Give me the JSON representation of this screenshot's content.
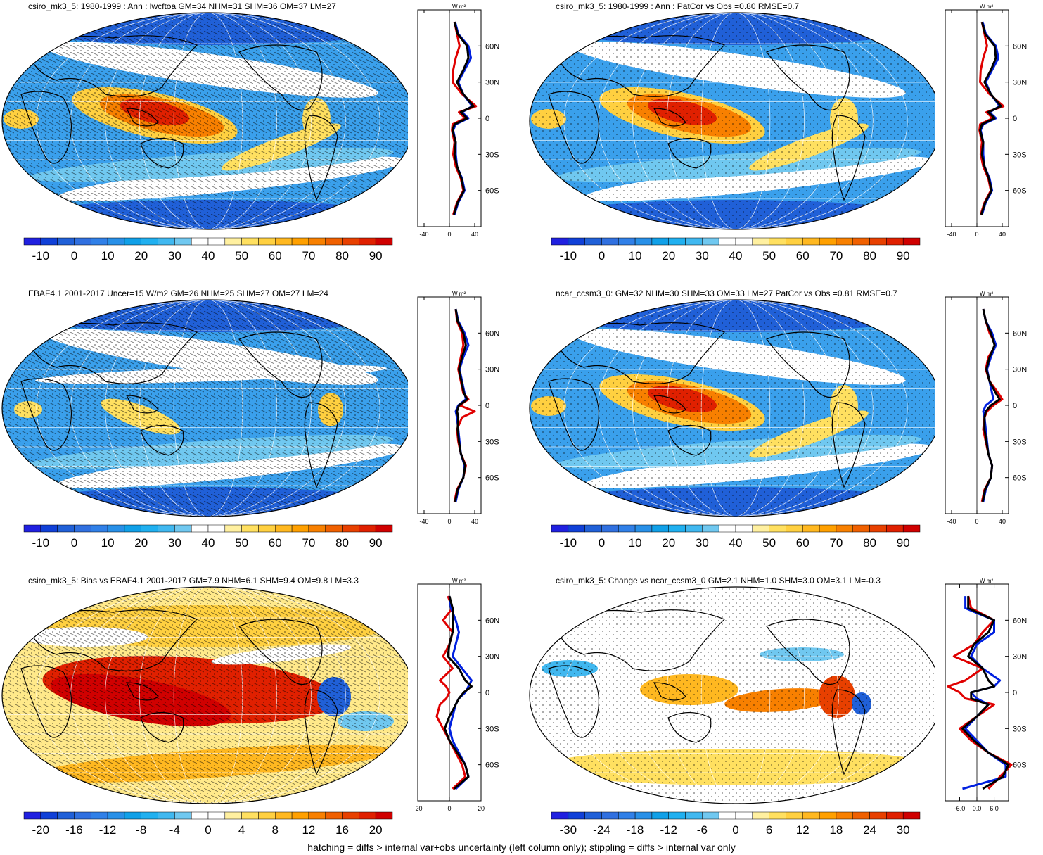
{
  "footer": "hatching = diffs > internal var+obs uncertainty (left column only); stippling = diffs > internal var only",
  "colors": {
    "model_line": "#e00000",
    "obs_line": "#0020e0",
    "ref_line": "#000000",
    "map_outline": "#000000"
  },
  "scales": {
    "absolute": [
      "-10",
      "0",
      "10",
      "20",
      "30",
      "40",
      "50",
      "60",
      "70",
      "80",
      "90"
    ],
    "bias": [
      "-20",
      "-16",
      "-12",
      "-8",
      "-4",
      "0",
      "4",
      "8",
      "12",
      "16",
      "20"
    ],
    "change": [
      "-30",
      "-24",
      "-18",
      "-12",
      "-6",
      "0",
      "6",
      "12",
      "18",
      "24",
      "30"
    ]
  },
  "palettes": {
    "absolute": [
      "#2020e0",
      "#1040d8",
      "#2060d8",
      "#3070e0",
      "#3080e8",
      "#2890e8",
      "#10a0e8",
      "#20b0f0",
      "#40b8f0",
      "#70c8f0",
      "#ffffff",
      "#ffffff",
      "#fff0a0",
      "#ffe060",
      "#ffd040",
      "#ffb820",
      "#ffa000",
      "#f88000",
      "#f06000",
      "#e84000",
      "#e02000",
      "#d00000"
    ],
    "diverging": [
      "#2020e0",
      "#1040d8",
      "#2060d8",
      "#3070e0",
      "#3080e8",
      "#2890e8",
      "#10a0e8",
      "#20b0f0",
      "#40b8f0",
      "#70c8f0",
      "#ffffff",
      "#ffffff",
      "#fff0a0",
      "#ffe060",
      "#ffd040",
      "#ffb820",
      "#ffa000",
      "#f88000",
      "#f06000",
      "#e84000",
      "#e02000",
      "#d00000"
    ]
  },
  "chart_data": [
    {
      "type": "map",
      "title": "csiro_mk3_5: 1980-1999 : Ann : lwcftoa GM=34 NHM=31 SHM=36 OM=37 LM=27",
      "scale": "absolute",
      "pattern": "hatch",
      "mapstyle": "abs",
      "profile": {
        "unit": "W m²",
        "xticks": [
          "-40",
          "0",
          "40"
        ],
        "xlim": [
          -50,
          50
        ],
        "lat_ticks": [
          "60N",
          "30N",
          "0",
          "30S",
          "60S"
        ],
        "lat": [
          80,
          70,
          60,
          50,
          40,
          30,
          20,
          10,
          5,
          0,
          -5,
          -10,
          -20,
          -30,
          -40,
          -50,
          -60,
          -70,
          -80
        ],
        "series": [
          {
            "role": "model",
            "values": [
              8,
              12,
              16,
              10,
              6,
              5,
              20,
              42,
              15,
              25,
              5,
              4,
              8,
              6,
              10,
              18,
              22,
              12,
              6
            ]
          },
          {
            "role": "obs",
            "values": [
              9,
              14,
              30,
              34,
              24,
              14,
              22,
              36,
              20,
              30,
              10,
              6,
              10,
              10,
              12,
              20,
              24,
              14,
              8
            ]
          },
          {
            "role": "ref",
            "values": [
              8,
              13,
              28,
              30,
              22,
              12,
              22,
              38,
              18,
              28,
              8,
              5,
              10,
              8,
              12,
              19,
              23,
              13,
              7
            ]
          }
        ]
      }
    },
    {
      "type": "map",
      "title": "csiro_mk3_5: 1980-1999 : Ann : PatCor vs Obs =0.80 RMSE=0.7",
      "scale": "absolute",
      "pattern": "stipple",
      "mapstyle": "abs",
      "profile": {
        "unit": "W m²",
        "xticks": [
          "-40",
          "0",
          "40"
        ],
        "xlim": [
          -50,
          50
        ],
        "lat_ticks": [
          "60N",
          "30N",
          "0",
          "30S",
          "60S"
        ],
        "lat": [
          80,
          70,
          60,
          50,
          40,
          30,
          20,
          10,
          5,
          0,
          -5,
          -10,
          -20,
          -30,
          -40,
          -50,
          -60,
          -70,
          -80
        ],
        "series": [
          {
            "role": "model",
            "values": [
              8,
              12,
              16,
              10,
              6,
              5,
              20,
              42,
              15,
              25,
              5,
              4,
              8,
              6,
              10,
              18,
              22,
              12,
              6
            ]
          },
          {
            "role": "obs",
            "values": [
              9,
              14,
              30,
              34,
              24,
              14,
              22,
              36,
              20,
              30,
              10,
              6,
              10,
              10,
              12,
              20,
              24,
              14,
              8
            ]
          },
          {
            "role": "ref",
            "values": [
              8,
              13,
              28,
              30,
              22,
              12,
              22,
              38,
              18,
              28,
              8,
              5,
              10,
              8,
              12,
              19,
              23,
              13,
              7
            ]
          }
        ]
      }
    },
    {
      "type": "map",
      "title": "EBAF4.1 2001-2017 Uncer=15 W/m2 GM=26 NHM=25 SHM=27 OM=27 LM=24",
      "scale": "absolute",
      "pattern": "hatch",
      "mapstyle": "obs",
      "profile": {
        "unit": "W m²",
        "xticks": [
          "-40",
          "0",
          "40"
        ],
        "xlim": [
          -50,
          50
        ],
        "lat_ticks": [
          "60N",
          "30N",
          "0",
          "30S",
          "60S"
        ],
        "lat": [
          80,
          70,
          60,
          50,
          40,
          30,
          20,
          10,
          5,
          0,
          -5,
          -10,
          -20,
          -30,
          -40,
          -50,
          -60,
          -70,
          -80
        ],
        "series": [
          {
            "role": "model",
            "values": [
              10,
              12,
              20,
              22,
              18,
              14,
              18,
              22,
              30,
              16,
              40,
              20,
              12,
              14,
              18,
              26,
              22,
              12,
              8
            ]
          },
          {
            "role": "obs",
            "values": [
              10,
              14,
              24,
              30,
              22,
              16,
              20,
              24,
              26,
              14,
              10,
              12,
              14,
              16,
              18,
              24,
              22,
              14,
              10
            ]
          },
          {
            "role": "ref",
            "values": [
              10,
              13,
              22,
              26,
              20,
              15,
              19,
              23,
              28,
              15,
              12,
              14,
              13,
              15,
              18,
              25,
              22,
              13,
              9
            ]
          }
        ]
      }
    },
    {
      "type": "map",
      "title": "ncar_ccsm3_0: GM=32 NHM=30 SHM=33 OM=33 LM=27 PatCor vs Obs =0.81 RMSE=0.7",
      "scale": "absolute",
      "pattern": "stipple",
      "mapstyle": "abs",
      "profile": {
        "unit": "W m²",
        "xticks": [
          "-40",
          "0",
          "40"
        ],
        "xlim": [
          -50,
          50
        ],
        "lat_ticks": [
          "60N",
          "30N",
          "0",
          "30S",
          "60S"
        ],
        "lat": [
          80,
          70,
          60,
          50,
          40,
          30,
          20,
          10,
          5,
          0,
          -5,
          -10,
          -20,
          -30,
          -40,
          -50,
          -60,
          -70,
          -80
        ],
        "series": [
          {
            "role": "model",
            "values": [
              10,
              14,
              20,
              30,
              18,
              14,
              20,
              34,
              40,
              26,
              16,
              12,
              10,
              14,
              18,
              24,
              22,
              12,
              8
            ]
          },
          {
            "role": "obs",
            "values": [
              10,
              14,
              24,
              30,
              22,
              16,
              20,
              24,
              26,
              14,
              10,
              12,
              14,
              16,
              18,
              24,
              22,
              14,
              10
            ]
          },
          {
            "role": "ref",
            "values": [
              10,
              14,
              22,
              28,
              20,
              15,
              20,
              30,
              36,
              22,
              14,
              12,
              12,
              15,
              18,
              24,
              22,
              13,
              9
            ]
          }
        ]
      }
    },
    {
      "type": "map",
      "title": "csiro_mk3_5: Bias vs EBAF4.1 2001-2017 GM=7.9 NHM=6.1 SHM=9.4 OM=9.8 LM=3.3",
      "scale": "bias",
      "pattern": "hatch",
      "mapstyle": "bias",
      "profile": {
        "unit": "W m²",
        "xticks": [
          "-20",
          "0",
          "20"
        ],
        "xlim": [
          -20,
          20
        ],
        "lat_ticks": [
          "60N",
          "30N",
          "0",
          "30S",
          "60S"
        ],
        "lat": [
          80,
          70,
          60,
          50,
          40,
          30,
          20,
          10,
          5,
          0,
          -5,
          -10,
          -20,
          -30,
          -40,
          -50,
          -60,
          -70,
          -80
        ],
        "series": [
          {
            "role": "model",
            "values": [
              -1,
              2,
              -4,
              2,
              0,
              -4,
              2,
              -6,
              -2,
              0,
              -2,
              -6,
              -8,
              -4,
              0,
              4,
              8,
              10,
              2
            ]
          },
          {
            "role": "obs",
            "values": [
              0,
              1,
              4,
              6,
              4,
              2,
              8,
              14,
              12,
              10,
              6,
              4,
              2,
              0,
              2,
              6,
              10,
              12,
              4
            ]
          },
          {
            "role": "ref",
            "values": [
              0,
              2,
              2,
              2,
              0,
              -1,
              6,
              10,
              14,
              9,
              6,
              4,
              0,
              -3,
              0,
              5,
              10,
              12,
              3
            ]
          }
        ]
      }
    },
    {
      "type": "map",
      "title": "csiro_mk3_5: Change vs ncar_ccsm3_0 GM=2.1 NHM=1.0 SHM=3.0 OM=3.1 LM=-0.3",
      "scale": "change",
      "pattern": "stipple",
      "mapstyle": "chg",
      "profile": {
        "unit": "W m²",
        "xticks": [
          "-6.0",
          "0.0",
          "6.0"
        ],
        "xlim": [
          -11,
          11
        ],
        "lat_ticks": [
          "60N",
          "30N",
          "0",
          "30S",
          "60S"
        ],
        "lat": [
          80,
          70,
          60,
          50,
          40,
          30,
          20,
          10,
          5,
          0,
          -5,
          -10,
          -20,
          -30,
          -40,
          -50,
          -60,
          -70,
          -80
        ],
        "series": [
          {
            "role": "model",
            "values": [
              -3,
              -2,
              6,
              2,
              -1,
              -8,
              2,
              -4,
              -10,
              -6,
              -4,
              6,
              0,
              -6,
              -2,
              4,
              12,
              8,
              4
            ]
          },
          {
            "role": "obs",
            "values": [
              -4,
              -4,
              6,
              6,
              0,
              -2,
              2,
              8,
              6,
              -2,
              0,
              4,
              0,
              -4,
              0,
              4,
              10,
              10,
              -5
            ]
          },
          {
            "role": "ref",
            "values": [
              -3,
              -3,
              6,
              4,
              -1,
              -3,
              2,
              4,
              6,
              -2,
              -2,
              4,
              0,
              -5,
              -1,
              4,
              11,
              9,
              2
            ]
          }
        ]
      }
    }
  ]
}
